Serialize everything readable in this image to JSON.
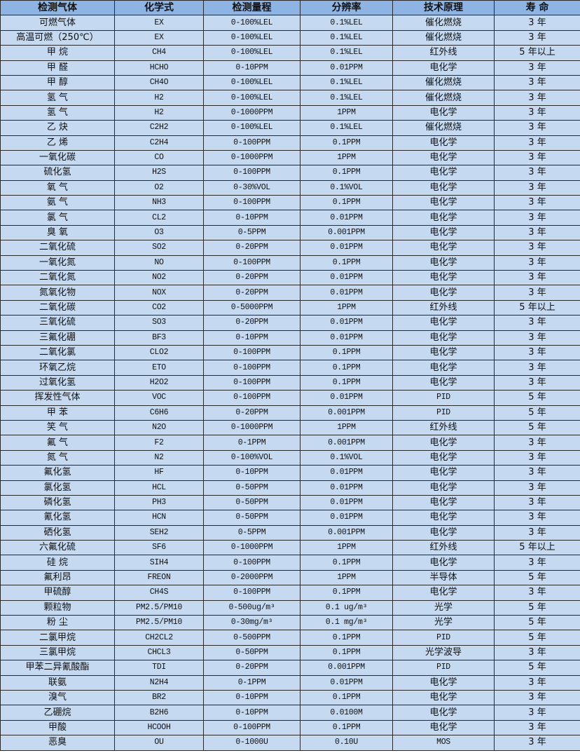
{
  "colors": {
    "header_bg": "#8db4e2",
    "row_bg": "#c5d9f1",
    "border": "#2a2a2a"
  },
  "headers": [
    "检测气体",
    "化学式",
    "检测量程",
    "分辨率",
    "技术原理",
    "寿 命"
  ],
  "rows": [
    [
      "可燃气体",
      "EX",
      "0-100%LEL",
      "0.1%LEL",
      "催化燃烧",
      "3 年"
    ],
    [
      "高温可燃（250℃）",
      "EX",
      "0-100%LEL",
      "0.1%LEL",
      "催化燃烧",
      "3 年"
    ],
    [
      "甲 烷",
      "CH4",
      "0-100%LEL",
      "0.1%LEL",
      "红外线",
      "5 年以上"
    ],
    [
      "甲 醛",
      "HCHO",
      "0-10PPM",
      "0.01PPM",
      "电化学",
      "3 年"
    ],
    [
      "甲 醇",
      "CH4O",
      "0-100%LEL",
      "0.1%LEL",
      "催化燃烧",
      "3 年"
    ],
    [
      "氢 气",
      "H2",
      "0-100%LEL",
      "0.1%LEL",
      "催化燃烧",
      "3 年"
    ],
    [
      "氢 气",
      "H2",
      "0-1000PPM",
      "1PPM",
      "电化学",
      "3 年"
    ],
    [
      "乙 炔",
      "C2H2",
      "0-100%LEL",
      "0.1%LEL",
      "催化燃烧",
      "3 年"
    ],
    [
      "乙 烯",
      "C2H4",
      "0-100PPM",
      "0.1PPM",
      "电化学",
      "3 年"
    ],
    [
      "一氧化碳",
      "CO",
      "0-1000PPM",
      "1PPM",
      "电化学",
      "3 年"
    ],
    [
      "硫化氢",
      "H2S",
      "0-100PPM",
      "0.1PPM",
      "电化学",
      "3 年"
    ],
    [
      "氧 气",
      "O2",
      "0-30%VOL",
      "0.1%VOL",
      "电化学",
      "3 年"
    ],
    [
      "氨 气",
      "NH3",
      "0-100PPM",
      "0.1PPM",
      "电化学",
      "3 年"
    ],
    [
      "氯 气",
      "CL2",
      "0-10PPM",
      "0.01PPM",
      "电化学",
      "3 年"
    ],
    [
      "臭 氧",
      "O3",
      "0-5PPM",
      "0.001PPM",
      "电化学",
      "3 年"
    ],
    [
      "二氧化硫",
      "SO2",
      "0-20PPM",
      "0.01PPM",
      "电化学",
      "3 年"
    ],
    [
      "一氧化氮",
      "NO",
      "0-100PPM",
      "0.1PPM",
      "电化学",
      "3 年"
    ],
    [
      "二氧化氮",
      "NO2",
      "0-20PPM",
      "0.01PPM",
      "电化学",
      "3 年"
    ],
    [
      "氮氧化物",
      "NOX",
      "0-20PPM",
      "0.01PPM",
      "电化学",
      "3 年"
    ],
    [
      "二氧化碳",
      "CO2",
      "0-5000PPM",
      "1PPM",
      "红外线",
      "5 年以上"
    ],
    [
      "三氧化硫",
      "SO3",
      "0-20PPM",
      "0.01PPM",
      "电化学",
      "3 年"
    ],
    [
      "三氟化硼",
      "BF3",
      "0-10PPM",
      "0.01PPM",
      "电化学",
      "3 年"
    ],
    [
      "二氧化氯",
      "CLO2",
      "0-100PPM",
      "0.1PPM",
      "电化学",
      "3 年"
    ],
    [
      "环氧乙烷",
      "ETO",
      "0-100PPM",
      "0.1PPM",
      "电化学",
      "3 年"
    ],
    [
      "过氧化氢",
      "H2O2",
      "0-100PPM",
      "0.1PPM",
      "电化学",
      "3 年"
    ],
    [
      "挥发性气体",
      "VOC",
      "0-100PPM",
      "0.01PPM",
      "PID",
      "5 年"
    ],
    [
      "甲 苯",
      "C6H6",
      "0-20PPM",
      "0.001PPM",
      "PID",
      "5 年"
    ],
    [
      "笑 气",
      "N2O",
      "0-1000PPM",
      "1PPM",
      "红外线",
      "5 年"
    ],
    [
      "氟 气",
      "F2",
      "0-1PPM",
      "0.001PPM",
      "电化学",
      "3 年"
    ],
    [
      "氮 气",
      "N2",
      "0-100%VOL",
      "0.1%VOL",
      "电化学",
      "3 年"
    ],
    [
      "氟化氢",
      "HF",
      "0-10PPM",
      "0.01PPM",
      "电化学",
      "3 年"
    ],
    [
      "氯化氢",
      "HCL",
      "0-50PPM",
      "0.01PPM",
      "电化学",
      "3 年"
    ],
    [
      "磷化氢",
      "PH3",
      "0-50PPM",
      "0.01PPM",
      "电化学",
      "3 年"
    ],
    [
      "氰化氢",
      "HCN",
      "0-50PPM",
      "0.01PPM",
      "电化学",
      "3 年"
    ],
    [
      "硒化氢",
      "SEH2",
      "0-5PPM",
      "0.001PPM",
      "电化学",
      "3 年"
    ],
    [
      "六氟化硫",
      "SF6",
      "0-1000PPM",
      "1PPM",
      "红外线",
      "5 年以上"
    ],
    [
      "硅 烷",
      "SIH4",
      "0-100PPM",
      "0.1PPM",
      "电化学",
      "3 年"
    ],
    [
      "氟利昂",
      "FREON",
      "0-2000PPM",
      "1PPM",
      "半导体",
      "5 年"
    ],
    [
      "甲硫醇",
      "CH4S",
      "0-100PPM",
      "0.1PPM",
      "电化学",
      "3 年"
    ],
    [
      "颗粒物",
      "PM2.5/PM10",
      "0-500ug/m³",
      "0.1 ug/m³",
      "光学",
      "5 年"
    ],
    [
      "粉 尘",
      "PM2.5/PM10",
      "0-30mg/m³",
      "0.1 mg/m³",
      "光学",
      "5 年"
    ],
    [
      "二氯甲烷",
      "CH2CL2",
      "0-500PPM",
      "0.1PPM",
      "PID",
      "5 年"
    ],
    [
      "三氯甲烷",
      "CHCL3",
      "0-50PPM",
      "0.1PPM",
      "光学波导",
      "3 年"
    ],
    [
      "甲苯二异氰酸酯",
      "TDI",
      "0-20PPM",
      "0.001PPM",
      "PID",
      "5 年"
    ],
    [
      "联氨",
      "N2H4",
      "0-1PPM",
      "0.01PPM",
      "电化学",
      "3 年"
    ],
    [
      "溴气",
      "BR2",
      "0-10PPM",
      "0.1PPM",
      "电化学",
      "3 年"
    ],
    [
      "乙硼烷",
      "B2H6",
      "0-10PPM",
      "0.0100M",
      "电化学",
      "3 年"
    ],
    [
      "甲酸",
      "HCOOH",
      "0-100PPM",
      "0.1PPM",
      "电化学",
      "3 年"
    ],
    [
      "恶臭",
      "OU",
      "0-1000U",
      "0.10U",
      "MOS",
      "3 年"
    ]
  ]
}
